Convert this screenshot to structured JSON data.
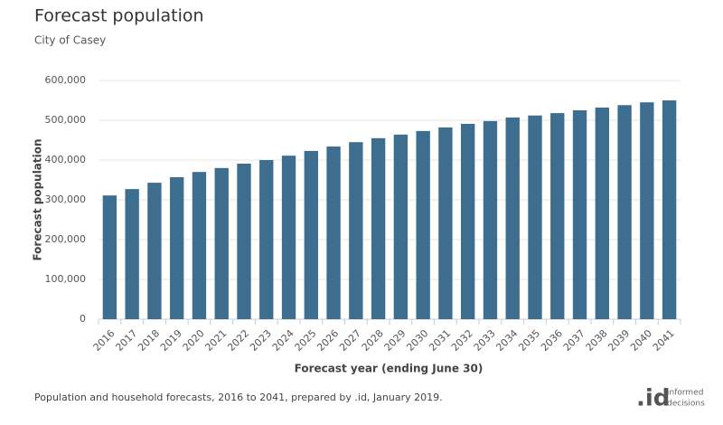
{
  "chart_data": {
    "type": "bar",
    "title": "Forecast population",
    "subtitle": "City of Casey",
    "x_label": "Forecast year (ending June 30)",
    "y_label": "Forecast population",
    "categories": [
      "2016",
      "2017",
      "2018",
      "2019",
      "2020",
      "2021",
      "2022",
      "2023",
      "2024",
      "2025",
      "2026",
      "2027",
      "2028",
      "2029",
      "2030",
      "2031",
      "2032",
      "2033",
      "2034",
      "2035",
      "2036",
      "2037",
      "2038",
      "2039",
      "2040",
      "2041"
    ],
    "values": [
      311000,
      327000,
      343000,
      357000,
      370000,
      380000,
      391000,
      400000,
      411000,
      423000,
      434000,
      445000,
      455000,
      464000,
      473000,
      482000,
      491000,
      498000,
      507000,
      512000,
      518000,
      525000,
      532000,
      538000,
      545000,
      550000
    ],
    "color": "#3d6e8f",
    "ylim": [
      0,
      600000
    ],
    "yticks": [
      0,
      {
        "value": 100000,
        "label": "100,000"
      },
      {
        "value": 200000,
        "label": "200,000"
      },
      {
        "value": 300000,
        "label": "300,000"
      },
      {
        "value": 400000,
        "label": "400,000"
      },
      {
        "value": 500000,
        "label": "500,000"
      },
      {
        "value": 600000,
        "label": "600,000"
      }
    ],
    "grid": true
  },
  "footer": {
    "source": "Population and household forecasts, 2016 to 2041, prepared by .id, January 2019.",
    "logo": ".id",
    "logo_line1": "informed",
    "logo_line2": "decisions"
  }
}
